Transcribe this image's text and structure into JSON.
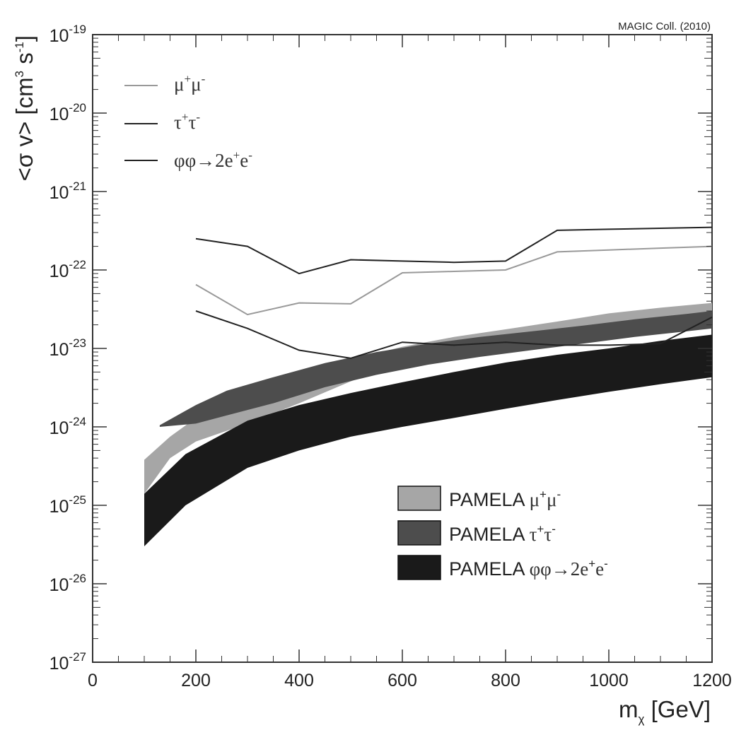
{
  "chart_data": {
    "type": "area",
    "credit": "MAGIC Coll. (2010)",
    "xlabel": {
      "main": "m",
      "sub": "χ",
      "unit": " [GeV]"
    },
    "ylabel": {
      "open": "<σ v> [cm",
      "exp1": "3",
      "mid": " s",
      "exp2": "-1",
      "close": "]"
    },
    "x_axis": {
      "range": [
        0,
        1200
      ],
      "scale": "linear",
      "ticks": [
        0,
        200,
        400,
        600,
        800,
        1000,
        1200
      ],
      "tick_labels": [
        "0",
        "200",
        "400",
        "600",
        "800",
        "1000",
        "1200"
      ]
    },
    "y_axis": {
      "range": [
        1e-27,
        1e-19
      ],
      "scale": "log",
      "ticks": [
        {
          "value": 1e-19,
          "base": "10",
          "exp": "-19"
        },
        {
          "value": 1e-20,
          "base": "10",
          "exp": "-20"
        },
        {
          "value": 1e-21,
          "base": "10",
          "exp": "-21"
        },
        {
          "value": 1e-22,
          "base": "10",
          "exp": "-22"
        },
        {
          "value": 1e-23,
          "base": "10",
          "exp": "-23"
        },
        {
          "value": 1e-24,
          "base": "10",
          "exp": "-24"
        },
        {
          "value": 1e-25,
          "base": "10",
          "exp": "-25"
        },
        {
          "value": 1e-26,
          "base": "10",
          "exp": "-26"
        },
        {
          "value": 1e-27,
          "base": "10",
          "exp": "-27"
        }
      ]
    },
    "grid": false,
    "series_lines": [
      {
        "name": "μ+μ-",
        "label": {
          "a": "μ",
          "a_sup": "+",
          "b": "μ",
          "b_sup": "-"
        },
        "color": "#999999",
        "x": [
          200,
          300,
          400,
          500,
          600,
          700,
          800,
          900,
          1000,
          1100,
          1200
        ],
        "y": [
          6.5e-23,
          2.7e-23,
          3.8e-23,
          3.7e-23,
          9.2e-23,
          9.6e-23,
          1e-22,
          1.7e-22,
          1.8e-22,
          1.9e-22,
          2e-22
        ]
      },
      {
        "name": "τ+τ-",
        "label": {
          "a": "τ",
          "a_sup": "+",
          "b": "τ",
          "b_sup": "-"
        },
        "color": "#222222",
        "x": [
          200,
          300,
          400,
          500,
          600,
          700,
          800,
          900,
          1000,
          1100,
          1200
        ],
        "y": [
          2.5e-22,
          2e-22,
          9e-23,
          1.35e-22,
          1.3e-22,
          1.25e-22,
          1.3e-22,
          3.2e-22,
          3.3e-22,
          3.4e-22,
          3.5e-22
        ]
      },
      {
        "name": "φφ→2e+e-",
        "label": {
          "a": "φφ→2e",
          "a_sup": "+",
          "b": "e",
          "b_sup": "-"
        },
        "color": "#222222",
        "x": [
          200,
          300,
          400,
          500,
          600,
          700,
          800,
          900,
          1000,
          1100,
          1200
        ],
        "y": [
          3e-23,
          1.8e-23,
          9.5e-24,
          7.5e-24,
          1.2e-23,
          1.1e-23,
          1.2e-23,
          1.1e-23,
          1.1e-23,
          1.15e-23,
          2.5e-23
        ]
      }
    ],
    "series_bands": [
      {
        "name": "PAMELA μ+μ-",
        "label": {
          "prefix": "PAMELA ",
          "a": "μ",
          "a_sup": "+",
          "b": "μ",
          "b_sup": "-"
        },
        "color": "#a6a6a6",
        "x": [
          100,
          150,
          200,
          300,
          400,
          500,
          600,
          700,
          800,
          900,
          1000,
          1100,
          1200
        ],
        "y_low": [
          1.4e-25,
          4e-25,
          6.5e-25,
          1.1e-24,
          2e-24,
          3.8e-24,
          6.5e-24,
          9e-24,
          1.1e-23,
          1.35e-23,
          1.6e-23,
          1.9e-23,
          2.2e-23
        ],
        "y_high": [
          3.8e-25,
          7.5e-25,
          1.3e-24,
          2.6e-24,
          4.4e-24,
          7.2e-24,
          1.05e-23,
          1.4e-23,
          1.75e-23,
          2.2e-23,
          2.8e-23,
          3.3e-23,
          3.8e-23
        ]
      },
      {
        "name": "PAMELA τ+τ-",
        "label": {
          "prefix": "PAMELA ",
          "a": "τ",
          "a_sup": "+",
          "b": "τ",
          "b_sup": "-"
        },
        "color": "#4d4d4d",
        "x": [
          130,
          200,
          260,
          350,
          450,
          550,
          650,
          750,
          850,
          950,
          1050,
          1150,
          1200
        ],
        "y_low": [
          1e-24,
          1.1e-24,
          1.4e-24,
          2e-24,
          3.2e-24,
          4.6e-24,
          6.2e-24,
          7.8e-24,
          9.5e-24,
          1.15e-23,
          1.4e-23,
          1.65e-23,
          1.8e-23
        ],
        "y_high": [
          1.05e-24,
          1.9e-24,
          2.9e-24,
          4.3e-24,
          6.5e-24,
          9e-24,
          1.15e-23,
          1.4e-23,
          1.65e-23,
          1.95e-23,
          2.35e-23,
          2.75e-23,
          3e-23
        ]
      },
      {
        "name": "PAMELA φφ→2e+e-",
        "label": {
          "prefix": "PAMELA ",
          "a": "φφ→2e",
          "a_sup": "+",
          "b": "e",
          "b_sup": "-"
        },
        "color": "#1a1a1a",
        "x": [
          100,
          180,
          300,
          400,
          500,
          600,
          700,
          800,
          900,
          1000,
          1100,
          1200
        ],
        "y_low": [
          3e-26,
          1e-25,
          3e-25,
          5e-25,
          7.5e-25,
          1e-24,
          1.3e-24,
          1.7e-24,
          2.2e-24,
          2.8e-24,
          3.5e-24,
          4.3e-24
        ],
        "y_high": [
          1.4e-25,
          4.5e-25,
          1.2e-24,
          1.9e-24,
          2.7e-24,
          3.7e-24,
          5e-24,
          6.6e-24,
          8.3e-24,
          1e-23,
          1.25e-23,
          1.5e-23
        ]
      }
    ]
  }
}
